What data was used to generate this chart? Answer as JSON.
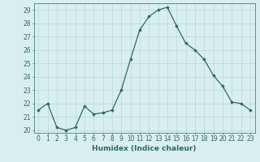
{
  "x": [
    0,
    1,
    2,
    3,
    4,
    5,
    6,
    7,
    8,
    9,
    10,
    11,
    12,
    13,
    14,
    15,
    16,
    17,
    18,
    19,
    20,
    21,
    22,
    23
  ],
  "y": [
    21.5,
    22.0,
    20.2,
    20.0,
    20.2,
    21.8,
    21.2,
    21.3,
    21.5,
    23.0,
    25.3,
    27.5,
    28.5,
    29.0,
    29.2,
    27.8,
    26.5,
    26.0,
    25.3,
    24.1,
    23.3,
    22.1,
    22.0,
    21.5
  ],
  "line_color": "#2e6b5e",
  "marker": "D",
  "markersize": 1.8,
  "linewidth": 0.9,
  "xlabel": "Humidex (Indice chaleur)",
  "xlim": [
    -0.5,
    23.5
  ],
  "ylim": [
    19.8,
    29.5
  ],
  "yticks": [
    20,
    21,
    22,
    23,
    24,
    25,
    26,
    27,
    28,
    29
  ],
  "xticks": [
    0,
    1,
    2,
    3,
    4,
    5,
    6,
    7,
    8,
    9,
    10,
    11,
    12,
    13,
    14,
    15,
    16,
    17,
    18,
    19,
    20,
    21,
    22,
    23
  ],
  "bg_color": "#d8efee",
  "grid_color": "#b8d8d6",
  "tick_color": "#2e6b5e",
  "label_color": "#2e6b5e",
  "xlabel_fontsize": 6.5,
  "tick_fontsize": 5.5
}
